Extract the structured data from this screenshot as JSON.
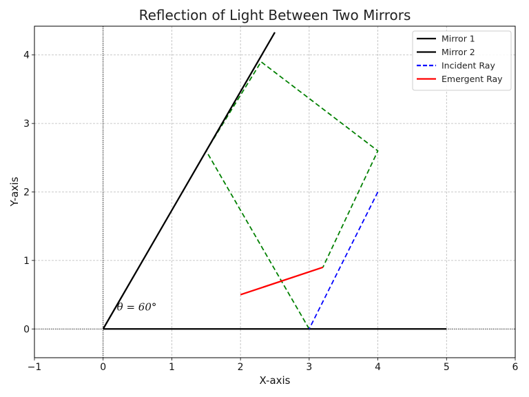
{
  "chart_data": {
    "type": "line",
    "title": "Reflection of Light Between Two Mirrors",
    "xlabel": "X-axis",
    "ylabel": "Y-axis",
    "xlim": [
      -1,
      6
    ],
    "ylim": [
      -0.42,
      4.42
    ],
    "xticks": [
      -1,
      0,
      1,
      2,
      3,
      4,
      5,
      6
    ],
    "xtick_labels": [
      "−1",
      "0",
      "1",
      "2",
      "3",
      "4",
      "5",
      "6"
    ],
    "yticks": [
      0,
      1,
      2,
      3,
      4
    ],
    "ytick_labels": [
      "0",
      "1",
      "2",
      "3",
      "4"
    ],
    "grid": true,
    "legend_position": "top-right",
    "series": [
      {
        "name": "Mirror 1",
        "color": "#000000",
        "dash": "solid",
        "points": [
          [
            0,
            0
          ],
          [
            2.5,
            4.33
          ]
        ]
      },
      {
        "name": "Mirror 2",
        "color": "#000000",
        "dash": "solid",
        "points": [
          [
            0,
            0
          ],
          [
            5,
            0
          ]
        ]
      },
      {
        "name": "Incident Ray",
        "color": "#0000ff",
        "dash": "dashed",
        "points": [
          [
            4,
            2
          ],
          [
            3,
            0
          ]
        ]
      },
      {
        "name": "Emergent Ray",
        "color": "#ff0000",
        "dash": "solid",
        "points": [
          [
            2,
            0.5
          ],
          [
            3.2,
            0.9
          ]
        ]
      }
    ],
    "unlabeled_series": [
      {
        "color": "#008000",
        "dash": "dashed",
        "points": [
          [
            3,
            0
          ],
          [
            1.5,
            2.6
          ],
          [
            2.3,
            3.9
          ],
          [
            4,
            2.6
          ],
          [
            3.2,
            0.9
          ]
        ]
      }
    ],
    "reference_lines": {
      "x_zero": true,
      "y_zero": true
    },
    "annotation": {
      "text": "θ = 60°",
      "x": 0.2,
      "y": 0.27
    }
  }
}
